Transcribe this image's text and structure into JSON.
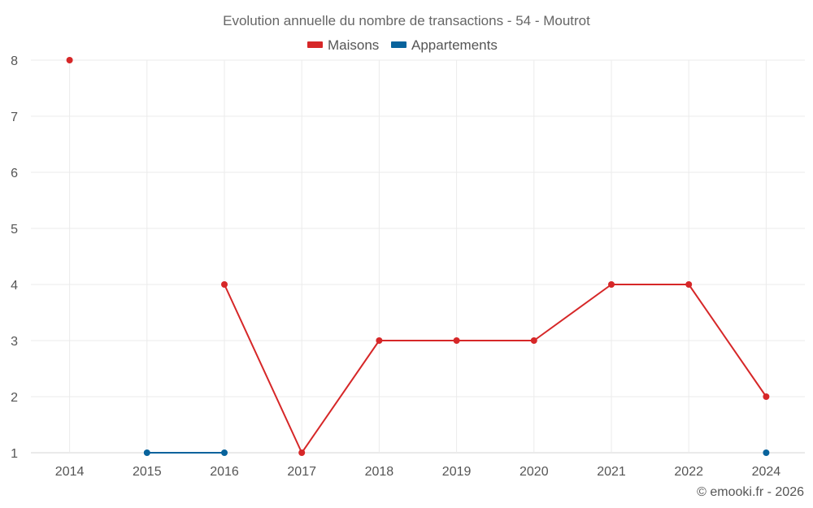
{
  "chart_data": {
    "type": "line",
    "title": "Evolution annuelle du nombre de transactions - 54 - Moutrot",
    "categories": [
      "2014",
      "2015",
      "2016",
      "2017",
      "2018",
      "2019",
      "2020",
      "2021",
      "2022",
      "2024"
    ],
    "series": [
      {
        "name": "Maisons",
        "color": "#d62728",
        "values": [
          8,
          null,
          4,
          1,
          3,
          3,
          3,
          4,
          4,
          2
        ]
      },
      {
        "name": "Appartements",
        "color": "#08639c",
        "values": [
          null,
          1,
          1,
          null,
          null,
          null,
          null,
          null,
          null,
          1
        ]
      }
    ],
    "yticks": [
      "1",
      "2",
      "3",
      "4",
      "5",
      "6",
      "7",
      "8"
    ],
    "ylim": [
      1,
      8
    ],
    "xlabel": "",
    "ylabel": "",
    "legend_position": "top-center",
    "grid": true
  },
  "credit": "© emooki.fr - 2026"
}
